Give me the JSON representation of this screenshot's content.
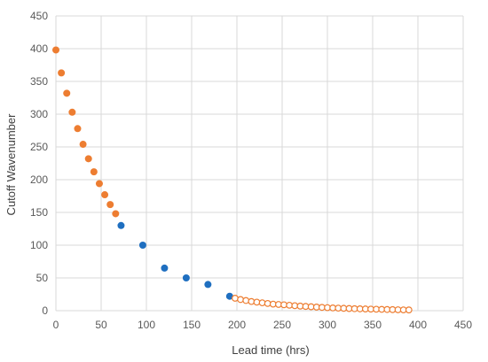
{
  "chart_data": {
    "type": "scatter",
    "title": "",
    "xlabel": "Lead time (hrs)",
    "ylabel": "Cutoff Wavenumber",
    "xlim": [
      0,
      450
    ],
    "ylim": [
      0,
      450
    ],
    "x_ticks": [
      "0",
      "50",
      "100",
      "150",
      "200",
      "250",
      "300",
      "350",
      "400",
      "450"
    ],
    "y_ticks": [
      "0",
      "50",
      "100",
      "150",
      "200",
      "250",
      "300",
      "350",
      "400",
      "450"
    ],
    "grid": true,
    "legend": "none",
    "colors": {
      "orange": "#ED7D31",
      "blue": "#1F6FC0",
      "grid": "#D9D9D9"
    },
    "series": [
      {
        "marker": "filled",
        "color": "#ED7D31",
        "points": [
          [
            0,
            398
          ],
          [
            6,
            363
          ],
          [
            12,
            332
          ],
          [
            18,
            303
          ],
          [
            24,
            278
          ],
          [
            30,
            254
          ],
          [
            36,
            232
          ],
          [
            42,
            212
          ],
          [
            48,
            194
          ],
          [
            54,
            177
          ],
          [
            60,
            162
          ],
          [
            66,
            148
          ]
        ]
      },
      {
        "marker": "filled",
        "color": "#1F6FC0",
        "points": [
          [
            72,
            130
          ],
          [
            96,
            100
          ],
          [
            120,
            65
          ],
          [
            144,
            50
          ],
          [
            168,
            40
          ],
          [
            192,
            22
          ]
        ]
      },
      {
        "marker": "open",
        "color": "#ED7D31",
        "points": [
          [
            198,
            19
          ],
          [
            204,
            17
          ],
          [
            210,
            15.5
          ],
          [
            216,
            14
          ],
          [
            222,
            13
          ],
          [
            228,
            12
          ],
          [
            234,
            11
          ],
          [
            240,
            10
          ],
          [
            246,
            9.5
          ],
          [
            252,
            9
          ],
          [
            258,
            8.3
          ],
          [
            264,
            7.6
          ],
          [
            270,
            7
          ],
          [
            276,
            6.5
          ],
          [
            282,
            6
          ],
          [
            288,
            5.5
          ],
          [
            294,
            5
          ],
          [
            300,
            4.6
          ],
          [
            306,
            4.2
          ],
          [
            312,
            3.9
          ],
          [
            318,
            3.6
          ],
          [
            324,
            3.3
          ],
          [
            330,
            3
          ],
          [
            336,
            2.8
          ],
          [
            342,
            2.6
          ],
          [
            348,
            2.4
          ],
          [
            354,
            2.2
          ],
          [
            360,
            2
          ],
          [
            366,
            1.8
          ],
          [
            372,
            1.6
          ],
          [
            378,
            1.4
          ],
          [
            384,
            1.2
          ],
          [
            390,
            1.1
          ]
        ]
      }
    ]
  }
}
